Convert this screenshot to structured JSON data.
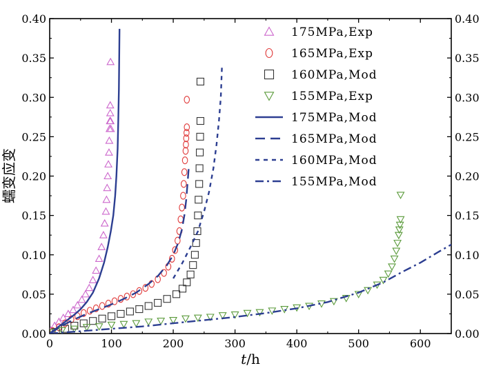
{
  "chart_data": {
    "type": "scatter",
    "title": "",
    "xlabel": "t/h",
    "xlabel_italic": "t",
    "xlabel_unit": "/h",
    "ylabel": "蠕变应变",
    "xlim": [
      0,
      650
    ],
    "ylim": [
      0,
      0.4
    ],
    "x_ticks": [
      "0",
      "100",
      "200",
      "300",
      "400",
      "500",
      "600"
    ],
    "y_ticks": [
      "0.00",
      "0.05",
      "0.10",
      "0.15",
      "0.20",
      "0.25",
      "0.30",
      "0.35",
      "0.40"
    ],
    "x_tick_values": [
      0,
      100,
      200,
      300,
      400,
      500,
      600
    ],
    "y_tick_values": [
      0,
      0.05,
      0.1,
      0.15,
      0.2,
      0.25,
      0.3,
      0.35,
      0.4
    ],
    "grid": false,
    "legend_position": "top-right",
    "series": [
      {
        "name": "175MPa,Exp",
        "kind": "marker",
        "marker": "triangle-up",
        "color": "#cc66cc",
        "x": [
          2,
          8,
          15,
          22,
          30,
          38,
          45,
          52,
          58,
          64,
          70,
          75,
          80,
          84,
          87,
          89,
          91,
          92,
          93,
          94,
          95,
          96,
          96.5,
          97,
          97.5,
          98,
          98,
          98.5,
          99,
          98.5
        ],
        "y": [
          0.004,
          0.01,
          0.015,
          0.02,
          0.025,
          0.03,
          0.036,
          0.043,
          0.05,
          0.058,
          0.068,
          0.08,
          0.095,
          0.11,
          0.125,
          0.14,
          0.155,
          0.17,
          0.185,
          0.2,
          0.215,
          0.23,
          0.245,
          0.26,
          0.27,
          0.28,
          0.29,
          0.27,
          0.26,
          0.345
        ]
      },
      {
        "name": "165MPa,Exp",
        "kind": "marker",
        "marker": "circle",
        "color": "#e03a3a",
        "x": [
          5,
          15,
          25,
          35,
          45,
          55,
          65,
          75,
          85,
          95,
          105,
          115,
          125,
          135,
          145,
          155,
          165,
          175,
          185,
          192,
          198,
          203,
          207,
          210,
          212,
          214,
          216,
          217,
          218,
          219,
          220,
          220.5,
          221,
          221.5,
          222,
          222
        ],
        "y": [
          0.003,
          0.008,
          0.013,
          0.018,
          0.022,
          0.026,
          0.029,
          0.032,
          0.035,
          0.038,
          0.041,
          0.044,
          0.047,
          0.05,
          0.054,
          0.058,
          0.063,
          0.069,
          0.077,
          0.085,
          0.095,
          0.106,
          0.118,
          0.13,
          0.145,
          0.16,
          0.175,
          0.19,
          0.205,
          0.22,
          0.232,
          0.24,
          0.248,
          0.255,
          0.262,
          0.297
        ]
      },
      {
        "name": "160MPa,Mod",
        "kind": "marker",
        "marker": "square",
        "color": "#333333",
        "x": [
          10,
          25,
          40,
          55,
          70,
          85,
          100,
          115,
          130,
          145,
          160,
          175,
          190,
          205,
          215,
          222,
          228,
          232,
          235,
          237,
          239,
          240,
          241,
          242,
          242.5,
          243,
          243.5,
          244,
          244
        ],
        "y": [
          0.002,
          0.006,
          0.01,
          0.013,
          0.016,
          0.019,
          0.022,
          0.025,
          0.028,
          0.031,
          0.035,
          0.039,
          0.044,
          0.05,
          0.057,
          0.065,
          0.075,
          0.087,
          0.1,
          0.115,
          0.13,
          0.15,
          0.17,
          0.19,
          0.21,
          0.23,
          0.25,
          0.27,
          0.32
        ]
      },
      {
        "name": "155MPa,Exp",
        "kind": "marker",
        "marker": "triangle-down",
        "color": "#5a9a3a",
        "x": [
          5,
          20,
          40,
          60,
          80,
          100,
          120,
          140,
          160,
          180,
          200,
          220,
          240,
          260,
          280,
          300,
          320,
          340,
          360,
          380,
          400,
          420,
          440,
          460,
          480,
          500,
          515,
          530,
          540,
          548,
          554,
          558,
          561,
          563,
          565,
          566,
          567,
          568,
          568
        ],
        "y": [
          0.002,
          0.004,
          0.006,
          0.008,
          0.009,
          0.011,
          0.012,
          0.013,
          0.015,
          0.016,
          0.017,
          0.019,
          0.02,
          0.021,
          0.023,
          0.024,
          0.026,
          0.027,
          0.029,
          0.031,
          0.033,
          0.035,
          0.038,
          0.041,
          0.045,
          0.05,
          0.055,
          0.062,
          0.068,
          0.076,
          0.085,
          0.095,
          0.105,
          0.115,
          0.125,
          0.132,
          0.138,
          0.145,
          0.176
        ]
      },
      {
        "name": "175MPa,Mod",
        "kind": "line",
        "dash": "solid",
        "color": "#2c3e91",
        "x": [
          0,
          10,
          20,
          30,
          40,
          50,
          60,
          70,
          80,
          88,
          94,
          99,
          103,
          106,
          108,
          110,
          111,
          112,
          113
        ],
        "y": [
          0,
          0.006,
          0.012,
          0.018,
          0.024,
          0.031,
          0.04,
          0.052,
          0.07,
          0.09,
          0.11,
          0.13,
          0.15,
          0.175,
          0.2,
          0.235,
          0.27,
          0.31,
          0.387
        ]
      },
      {
        "name": "165MPa,Mod",
        "kind": "line",
        "dash": "long-dash",
        "color": "#2c3e91",
        "x": [
          0,
          20,
          40,
          60,
          80,
          100,
          120,
          140,
          160,
          175,
          190,
          200,
          208,
          214,
          218,
          221,
          223,
          225
        ],
        "y": [
          0,
          0.01,
          0.018,
          0.025,
          0.031,
          0.037,
          0.044,
          0.052,
          0.063,
          0.073,
          0.087,
          0.1,
          0.115,
          0.132,
          0.15,
          0.17,
          0.19,
          0.21
        ]
      },
      {
        "name": "160MPa,Mod",
        "kind": "line",
        "dash": "short-dash",
        "color": "#2c3e91",
        "x": [
          200,
          215,
          228,
          240,
          250,
          258,
          265,
          270,
          274,
          277,
          279
        ],
        "y": [
          0.07,
          0.09,
          0.11,
          0.13,
          0.155,
          0.18,
          0.21,
          0.24,
          0.27,
          0.3,
          0.342
        ]
      },
      {
        "name": "155MPa,Mod",
        "kind": "line",
        "dash": "dash-dot",
        "color": "#2c3e91",
        "x": [
          0,
          50,
          100,
          150,
          200,
          250,
          300,
          350,
          400,
          450,
          500,
          540,
          570,
          600,
          630,
          650
        ],
        "y": [
          0,
          0.003,
          0.006,
          0.009,
          0.013,
          0.017,
          0.021,
          0.026,
          0.032,
          0.04,
          0.052,
          0.065,
          0.078,
          0.09,
          0.104,
          0.113
        ]
      }
    ]
  }
}
